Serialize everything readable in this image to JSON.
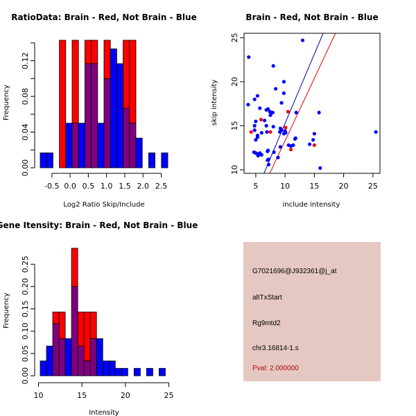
{
  "colors": {
    "red": "#ff0000",
    "blue": "#0000ff",
    "overlap": "#7f007f",
    "info_bg": "#e6c8c2",
    "pval_text": "#b00000",
    "red_line": "#dd0000",
    "blue_line": "#0000aa"
  },
  "chart_data": [
    {
      "id": "ratio-histogram",
      "type": "bar",
      "title": "RatioData: Brain - Red, Not Brain - Blue",
      "xlabel": "Log2 Ratio Skip/Include",
      "ylabel": "Frequency",
      "xlim": [
        -0.82,
        2.68
      ],
      "ylim": [
        0,
        0.143
      ],
      "xticks": [
        "-0.5",
        "0.0",
        "0.5",
        "1.0",
        "1.5",
        "2.0",
        "2.5"
      ],
      "xtick_values": [
        -0.5,
        0.0,
        0.5,
        1.0,
        1.5,
        2.0,
        2.5
      ],
      "yticks": [
        "0.00",
        "0.04",
        "0.08",
        "0.12"
      ],
      "ytick_values": [
        0.0,
        0.02,
        0.04,
        0.06,
        0.08,
        0.1,
        0.12,
        0.14
      ],
      "ytick_labels_shown": [
        0.0,
        0.04,
        0.08,
        0.12
      ],
      "bin_start": -0.82,
      "bin_width": 0.175,
      "series": [
        {
          "name": "Brain",
          "color": "red",
          "values": [
            0,
            0,
            0,
            0.143,
            0,
            0.143,
            0,
            0.143,
            0.143,
            0,
            0.143,
            0,
            0,
            0.143,
            0.143,
            0,
            0,
            0,
            0,
            0
          ]
        },
        {
          "name": "Not Brain",
          "color": "blue",
          "values": [
            0.0167,
            0.0167,
            0,
            0,
            0.05,
            0.05,
            0.05,
            0.1167,
            0.1167,
            0.05,
            0.1,
            0.1333,
            0.1167,
            0.0667,
            0.05,
            0.0333,
            0,
            0.0167,
            0,
            0.0167
          ]
        }
      ]
    },
    {
      "id": "intensity-scatter",
      "type": "scatter",
      "title": "Brain - Red, Not Brain - Blue",
      "xlabel": "include intensity",
      "ylabel": "skip intensity",
      "xlim": [
        3,
        26.2
      ],
      "ylim": [
        9.6,
        25.5
      ],
      "xticks": [
        "5",
        "10",
        "15",
        "20",
        "25"
      ],
      "xtick_values": [
        5,
        10,
        15,
        20,
        25
      ],
      "yticks": [
        "10",
        "15",
        "20",
        "25"
      ],
      "ytick_values": [
        10,
        15,
        20,
        25
      ],
      "series": [
        {
          "name": "Not Brain",
          "color": "blue",
          "points": [
            [
              3.8,
              22.8
            ],
            [
              3.7,
              17.4
            ],
            [
              4.8,
              18.0
            ],
            [
              5.3,
              18.4
            ],
            [
              5.0,
              15.5
            ],
            [
              4.8,
              15.0
            ],
            [
              4.8,
              14.5
            ],
            [
              5.7,
              17.0
            ],
            [
              5.3,
              13.9
            ],
            [
              5.3,
              13.7
            ],
            [
              5.0,
              13.4
            ],
            [
              6.0,
              14.2
            ],
            [
              6.5,
              15.6
            ],
            [
              6.8,
              15.0
            ],
            [
              6.9,
              14.3
            ],
            [
              6.8,
              16.8
            ],
            [
              7.1,
              16.9
            ],
            [
              7.4,
              16.6
            ],
            [
              7.5,
              16.2
            ],
            [
              7.7,
              16.5
            ],
            [
              7.9,
              16.5
            ],
            [
              8.0,
              14.9
            ],
            [
              8.0,
              21.8
            ],
            [
              8.4,
              19.2
            ],
            [
              9.4,
              17.6
            ],
            [
              9.8,
              20.0
            ],
            [
              9.8,
              18.7
            ],
            [
              4.7,
              12.0
            ],
            [
              5.0,
              11.9
            ],
            [
              5.3,
              11.8
            ],
            [
              5.4,
              11.6
            ],
            [
              5.7,
              11.9
            ],
            [
              6.0,
              11.7
            ],
            [
              7.0,
              12.1
            ],
            [
              7.1,
              12.2
            ],
            [
              7.0,
              11.1
            ],
            [
              7.2,
              11.2
            ],
            [
              7.2,
              10.6
            ],
            [
              8.1,
              12.0
            ],
            [
              8.8,
              11.4
            ],
            [
              9.2,
              12.6
            ],
            [
              9.1,
              14.3
            ],
            [
              9.2,
              14.7
            ],
            [
              9.4,
              14.5
            ],
            [
              9.8,
              14.1
            ],
            [
              10.0,
              14.4
            ],
            [
              10.1,
              14.2
            ],
            [
              10.6,
              12.8
            ],
            [
              11.0,
              12.7
            ],
            [
              11.4,
              12.8
            ],
            [
              11.7,
              13.5
            ],
            [
              11.8,
              13.6
            ],
            [
              11.9,
              16.5
            ],
            [
              13.0,
              24.7
            ],
            [
              14.2,
              12.9
            ],
            [
              14.8,
              13.4
            ],
            [
              15.0,
              14.1
            ],
            [
              15.8,
              16.5
            ],
            [
              16.0,
              10.2
            ],
            [
              25.5,
              14.3
            ]
          ]
        },
        {
          "name": "Brain",
          "color": "red",
          "points": [
            [
              4.2,
              14.3
            ],
            [
              5.9,
              15.7
            ],
            [
              7.5,
              14.3
            ],
            [
              10.1,
              14.8
            ],
            [
              10.5,
              16.6
            ],
            [
              11.0,
              12.3
            ],
            [
              15.0,
              12.8
            ]
          ]
        }
      ],
      "lines": [
        {
          "name": "Not Brain fit",
          "color": "blue_line",
          "x": [
            6.4,
            16.5
          ],
          "y": [
            9.6,
            25.5
          ]
        },
        {
          "name": "Brain fit",
          "color": "red_line",
          "x": [
            7.4,
            18.6
          ],
          "y": [
            9.6,
            25.5
          ]
        }
      ]
    },
    {
      "id": "gene-intensity-histogram",
      "type": "bar",
      "title": "Gene Itensity: Brain - Red, Not Brain - Blue",
      "xlabel": "Intensity",
      "ylabel": "Frequency",
      "xlim": [
        10.2,
        25.2
      ],
      "ylim": [
        0,
        0.286
      ],
      "xticks": [
        "10",
        "15",
        "20",
        "25"
      ],
      "xtick_values": [
        10,
        15,
        20,
        25
      ],
      "yticks": [
        "0.00",
        "0.05",
        "0.10",
        "0.15",
        "0.20",
        "0.25"
      ],
      "ytick_values": [
        0.0,
        0.05,
        0.1,
        0.15,
        0.2,
        0.25
      ],
      "bin_start": 10.2,
      "bin_width": 0.72,
      "series": [
        {
          "name": "Brain",
          "color": "red",
          "values": [
            0,
            0,
            0.143,
            0.143,
            0,
            0.286,
            0.143,
            0.143,
            0.143,
            0,
            0,
            0,
            0,
            0,
            0,
            0,
            0,
            0,
            0,
            0
          ]
        },
        {
          "name": "Not Brain",
          "color": "blue",
          "values": [
            0.0333,
            0.0667,
            0.1167,
            0.0833,
            0.0833,
            0.2,
            0.0667,
            0.0333,
            0.0833,
            0.0833,
            0.0333,
            0.0333,
            0.0167,
            0.0167,
            0,
            0.0167,
            0,
            0.0167,
            0,
            0.0167
          ]
        }
      ]
    }
  ],
  "info": {
    "probe_id": "G7021696@J932361@j_at",
    "event_type": "altTxStart",
    "gene": "Rg9mtd2",
    "location": "chr3.16814-1.s",
    "pval": "Pval: 2.000000"
  }
}
